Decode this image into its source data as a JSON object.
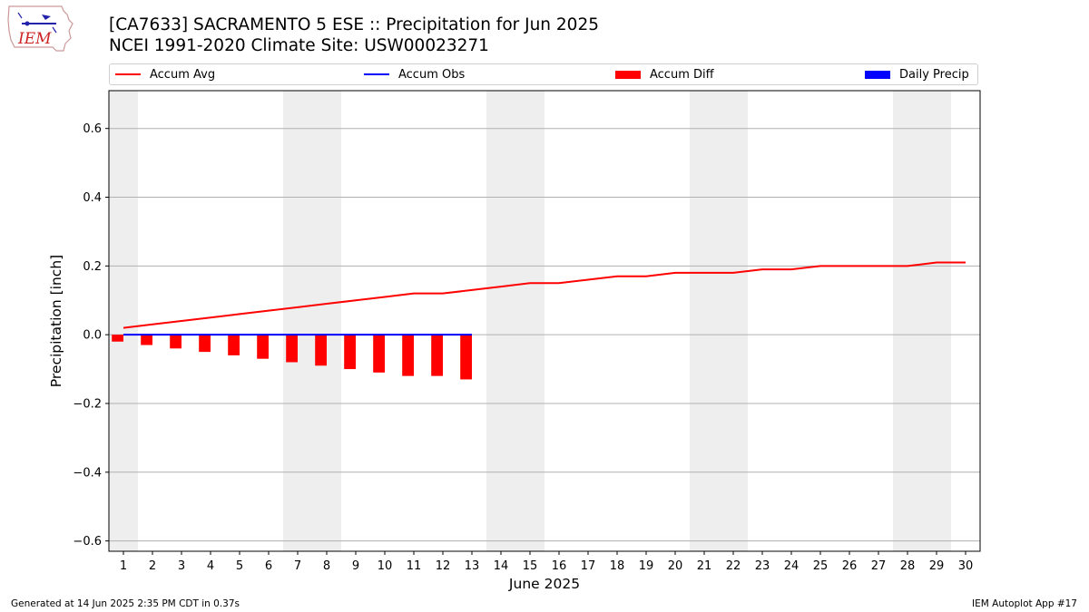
{
  "title": "[CA7633] SACRAMENTO 5 ESE :: Precipitation for Jun 2025",
  "subtitle": "NCEI 1991-2020 Climate Site: USW00023271",
  "logo_text": "IEM",
  "footer_left": "Generated at 14 Jun 2025 2:35 PM CDT in 0.37s",
  "footer_right": "IEM Autoplot App #17",
  "legend": [
    {
      "label": "Accum Avg",
      "kind": "line",
      "color": "#ff0000"
    },
    {
      "label": "Accum Obs",
      "kind": "line",
      "color": "#0000ff"
    },
    {
      "label": "Accum Diff",
      "kind": "box",
      "color": "#ff0000"
    },
    {
      "label": "Daily Precip",
      "kind": "box",
      "color": "#0000ff"
    }
  ],
  "chart_data": {
    "type": "bar",
    "xlabel": "June 2025",
    "ylabel": "Precipitation [inch]",
    "xlim": [
      0.5,
      30.5
    ],
    "ylim": [
      -0.63,
      0.71
    ],
    "yticks": [
      -0.6,
      -0.4,
      -0.2,
      0.0,
      0.2,
      0.4,
      0.6
    ],
    "ytick_labels": [
      "−0.6",
      "−0.4",
      "−0.2",
      "0.0",
      "0.2",
      "0.4",
      "0.6"
    ],
    "categories": [
      "1",
      "2",
      "3",
      "4",
      "5",
      "6",
      "7",
      "8",
      "9",
      "10",
      "11",
      "12",
      "13",
      "14",
      "15",
      "16",
      "17",
      "18",
      "19",
      "20",
      "21",
      "22",
      "23",
      "24",
      "25",
      "26",
      "27",
      "28",
      "29",
      "30"
    ],
    "grid": "horizontal",
    "weekend_shading": [
      [
        1
      ],
      [
        7,
        8
      ],
      [
        14,
        15
      ],
      [
        21,
        22
      ],
      [
        28,
        29
      ]
    ],
    "shade_color": "#eeeeee",
    "series": [
      {
        "name": "Accum Avg",
        "type": "line",
        "color": "#ff0000",
        "x": [
          1,
          2,
          3,
          4,
          5,
          6,
          7,
          8,
          9,
          10,
          11,
          12,
          13,
          14,
          15,
          16,
          17,
          18,
          19,
          20,
          21,
          22,
          23,
          24,
          25,
          26,
          27,
          28,
          29,
          30
        ],
        "values": [
          0.02,
          0.03,
          0.04,
          0.05,
          0.06,
          0.07,
          0.08,
          0.09,
          0.1,
          0.11,
          0.12,
          0.12,
          0.13,
          0.14,
          0.15,
          0.15,
          0.16,
          0.17,
          0.17,
          0.18,
          0.18,
          0.18,
          0.19,
          0.19,
          0.2,
          0.2,
          0.2,
          0.2,
          0.21,
          0.21
        ]
      },
      {
        "name": "Accum Obs",
        "type": "line",
        "color": "#0000ff",
        "x": [
          1,
          2,
          3,
          4,
          5,
          6,
          7,
          8,
          9,
          10,
          11,
          12,
          13
        ],
        "values": [
          0,
          0,
          0,
          0,
          0,
          0,
          0,
          0,
          0,
          0,
          0,
          0,
          0
        ]
      },
      {
        "name": "Accum Diff",
        "type": "bar",
        "color": "#ff0000",
        "x": [
          1,
          2,
          3,
          4,
          5,
          6,
          7,
          8,
          9,
          10,
          11,
          12,
          13
        ],
        "values": [
          -0.02,
          -0.03,
          -0.04,
          -0.05,
          -0.06,
          -0.07,
          -0.08,
          -0.09,
          -0.1,
          -0.11,
          -0.12,
          -0.12,
          -0.13
        ]
      },
      {
        "name": "Daily Precip",
        "type": "bar",
        "color": "#0000ff",
        "x": [
          1,
          2,
          3,
          4,
          5,
          6,
          7,
          8,
          9,
          10,
          11,
          12,
          13
        ],
        "values": [
          0,
          0,
          0,
          0,
          0,
          0,
          0,
          0,
          0,
          0,
          0,
          0,
          0
        ]
      }
    ]
  }
}
